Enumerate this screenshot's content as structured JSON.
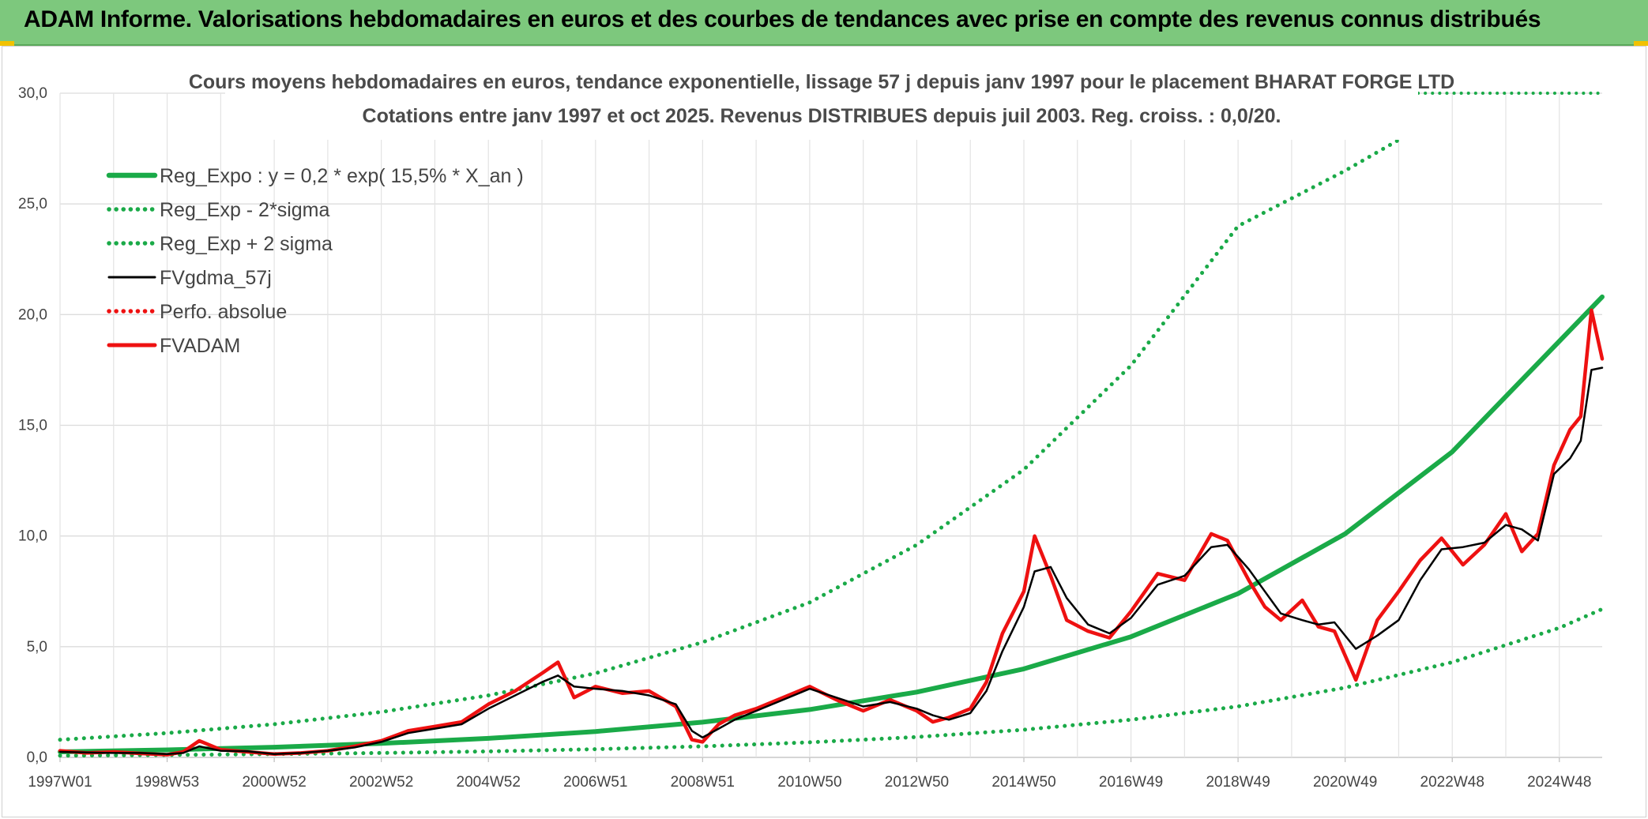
{
  "header": {
    "title": "ADAM Informe. Valorisations hebdomadaires en euros et des courbes de tendances avec prise en compte des revenus connus distribués"
  },
  "colors": {
    "header_bg": "#7dc87d",
    "regression": "#1aaa48",
    "fvgdma": "#000000",
    "fvadam": "#ee1111",
    "perfo": "#ee1111"
  },
  "chart_data": {
    "type": "line",
    "title_line1": "Cours moyens hebdomadaires en euros, tendance exponentielle, lissage 57 j depuis janv 1997 pour le placement BHARAT FORGE LTD",
    "title_line2": "Cotations entre janv 1997 et oct 2025. Revenus DISTRIBUES depuis juil 2003. Reg. croiss. : 0,0/20.",
    "xlabel": "",
    "ylabel": "",
    "xlim": [
      1997.0,
      2025.8
    ],
    "ylim": [
      0,
      30
    ],
    "grid": true,
    "legend_position": "top-left",
    "y_ticks": [
      "0,0",
      "5,0",
      "10,0",
      "15,0",
      "20,0",
      "25,0",
      "30,0"
    ],
    "x_ticks": [
      {
        "label": "1997W01",
        "x": 1997.0
      },
      {
        "label": "1998W53",
        "x": 1999.0
      },
      {
        "label": "2000W52",
        "x": 2001.0
      },
      {
        "label": "2002W52",
        "x": 2003.0
      },
      {
        "label": "2004W52",
        "x": 2005.0
      },
      {
        "label": "2006W51",
        "x": 2007.0
      },
      {
        "label": "2008W51",
        "x": 2009.0
      },
      {
        "label": "2010W50",
        "x": 2011.0
      },
      {
        "label": "2012W50",
        "x": 2013.0
      },
      {
        "label": "2014W50",
        "x": 2015.0
      },
      {
        "label": "2016W49",
        "x": 2017.0
      },
      {
        "label": "2018W49",
        "x": 2019.0
      },
      {
        "label": "2020W49",
        "x": 2021.0
      },
      {
        "label": "2022W48",
        "x": 2023.0
      },
      {
        "label": "2024W48",
        "x": 2025.0
      }
    ],
    "series": [
      {
        "name": "Reg_Expo : y = 0,2 * exp( 15,5% *  X_an )",
        "style": "solid-thick",
        "color": "#1aaa48",
        "x": [
          1997,
          1999,
          2001,
          2003,
          2005,
          2007,
          2009,
          2011,
          2013,
          2015,
          2017,
          2019,
          2021,
          2023,
          2025,
          2025.8
        ],
        "y": [
          0.25,
          0.34,
          0.46,
          0.63,
          0.86,
          1.17,
          1.59,
          2.16,
          2.95,
          4.0,
          5.45,
          7.4,
          10.1,
          13.8,
          18.8,
          20.8
        ]
      },
      {
        "name": "Reg_Exp - 2*sigma",
        "style": "dotted",
        "color": "#1aaa48",
        "x": [
          1997,
          1999,
          2001,
          2003,
          2005,
          2007,
          2009,
          2011,
          2013,
          2015,
          2017,
          2019,
          2021,
          2023,
          2025,
          2025.8
        ],
        "y": [
          0.08,
          0.11,
          0.15,
          0.2,
          0.27,
          0.37,
          0.5,
          0.68,
          0.92,
          1.25,
          1.7,
          2.3,
          3.15,
          4.3,
          5.85,
          6.7
        ]
      },
      {
        "name": "Reg_Exp + 2 sigma",
        "style": "dotted",
        "color": "#1aaa48",
        "x": [
          1997,
          1999,
          2001,
          2003,
          2005,
          2007,
          2009,
          2011,
          2013,
          2015,
          2017,
          2019,
          2021,
          2022.15
        ],
        "y": [
          0.8,
          1.1,
          1.5,
          2.05,
          2.8,
          3.8,
          5.2,
          7.0,
          9.6,
          13.0,
          17.7,
          24.0,
          26.5,
          28.1
        ]
      },
      {
        "name": "FVgdma_57j",
        "style": "solid",
        "color": "#000000",
        "x": [
          1997,
          1997.5,
          1998,
          1998.5,
          1999,
          1999.3,
          1999.6,
          2000,
          2000.5,
          2001,
          2001.5,
          2002,
          2002.5,
          2003,
          2003.5,
          2004,
          2004.5,
          2005,
          2005.5,
          2006,
          2006.3,
          2006.6,
          2007,
          2007.5,
          2008,
          2008.5,
          2008.8,
          2009,
          2009.3,
          2009.6,
          2010,
          2010.5,
          2011,
          2011.5,
          2012,
          2012.5,
          2013,
          2013.3,
          2013.6,
          2014,
          2014.3,
          2014.6,
          2015,
          2015.2,
          2015.5,
          2015.8,
          2016.2,
          2016.6,
          2017,
          2017.5,
          2018,
          2018.5,
          2018.8,
          2019.2,
          2019.5,
          2019.8,
          2020.2,
          2020.5,
          2020.8,
          2021.2,
          2021.6,
          2022,
          2022.4,
          2022.8,
          2023.2,
          2023.6,
          2024,
          2024.3,
          2024.6,
          2024.9,
          2025.2,
          2025.4,
          2025.6,
          2025.8
        ],
        "y": [
          0.25,
          0.22,
          0.2,
          0.2,
          0.15,
          0.2,
          0.5,
          0.3,
          0.28,
          0.15,
          0.2,
          0.3,
          0.45,
          0.7,
          1.1,
          1.3,
          1.5,
          2.2,
          2.8,
          3.4,
          3.7,
          3.2,
          3.1,
          3.0,
          2.8,
          2.4,
          1.2,
          0.9,
          1.3,
          1.7,
          2.1,
          2.6,
          3.1,
          2.7,
          2.3,
          2.5,
          2.2,
          1.9,
          1.7,
          2.0,
          3.0,
          4.8,
          6.8,
          8.4,
          8.6,
          7.2,
          6.0,
          5.6,
          6.3,
          7.8,
          8.2,
          9.5,
          9.6,
          8.5,
          7.5,
          6.5,
          6.2,
          6.0,
          6.1,
          4.9,
          5.5,
          6.2,
          8.0,
          9.4,
          9.5,
          9.7,
          10.5,
          10.3,
          9.8,
          12.8,
          13.5,
          14.3,
          17.5,
          17.6
        ]
      },
      {
        "name": "Perfo. absolue",
        "style": "dotted",
        "color": "#ee1111",
        "x": [],
        "y": []
      },
      {
        "name": "FVADAM",
        "style": "solid-thick",
        "color": "#ee1111",
        "x": [
          1997,
          1997.5,
          1998,
          1998.5,
          1999,
          1999.3,
          1999.6,
          2000,
          2000.5,
          2001,
          2001.5,
          2002,
          2002.5,
          2003,
          2003.5,
          2004,
          2004.5,
          2005,
          2005.5,
          2006,
          2006.3,
          2006.6,
          2007,
          2007.5,
          2008,
          2008.5,
          2008.8,
          2009,
          2009.3,
          2009.6,
          2010,
          2010.5,
          2011,
          2011.5,
          2012,
          2012.5,
          2013,
          2013.3,
          2013.6,
          2014,
          2014.3,
          2014.6,
          2015,
          2015.2,
          2015.5,
          2015.8,
          2016.2,
          2016.6,
          2017,
          2017.5,
          2018,
          2018.5,
          2018.8,
          2019.2,
          2019.5,
          2019.8,
          2020.2,
          2020.5,
          2020.8,
          2021.2,
          2021.6,
          2022,
          2022.4,
          2022.8,
          2023.2,
          2023.6,
          2024,
          2024.3,
          2024.6,
          2024.9,
          2025.2,
          2025.4,
          2025.6,
          2025.8
        ],
        "y": [
          0.3,
          0.2,
          0.25,
          0.18,
          0.12,
          0.25,
          0.75,
          0.35,
          0.25,
          0.15,
          0.2,
          0.3,
          0.5,
          0.75,
          1.2,
          1.4,
          1.6,
          2.4,
          3.0,
          3.8,
          4.3,
          2.7,
          3.2,
          2.9,
          3.0,
          2.3,
          0.8,
          0.7,
          1.5,
          1.9,
          2.2,
          2.7,
          3.2,
          2.6,
          2.1,
          2.6,
          2.1,
          1.6,
          1.8,
          2.2,
          3.4,
          5.6,
          7.5,
          10.0,
          8.2,
          6.2,
          5.7,
          5.4,
          6.6,
          8.3,
          8.0,
          10.1,
          9.8,
          8.0,
          6.8,
          6.2,
          7.1,
          5.9,
          5.7,
          3.5,
          6.2,
          7.5,
          8.9,
          9.9,
          8.7,
          9.6,
          11.0,
          9.3,
          10.1,
          13.2,
          14.8,
          15.4,
          20.2,
          18.0
        ]
      }
    ]
  }
}
